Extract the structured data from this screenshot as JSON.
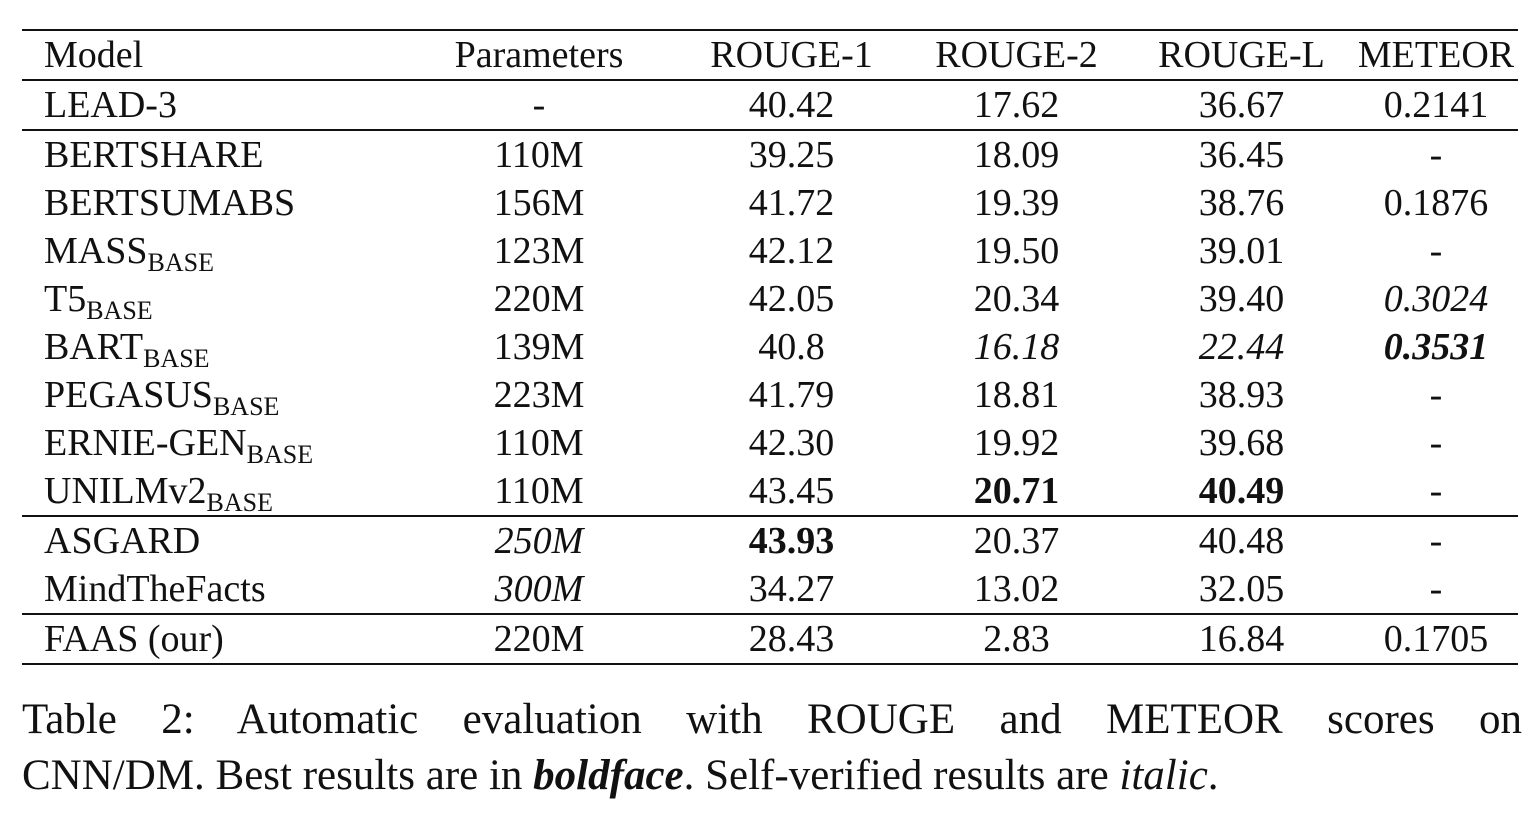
{
  "table": {
    "headers": [
      "Model",
      "Parameters",
      "ROUGE-1",
      "ROUGE-2",
      "ROUGE-L",
      "METEOR"
    ],
    "groups": [
      [
        {
          "model": "LEAD-3",
          "sub": "",
          "params": "-",
          "r1": "40.42",
          "r2": "17.62",
          "rl": "36.67",
          "meteor": "0.2141"
        }
      ],
      [
        {
          "model": "BERTSHARE",
          "sub": "",
          "params": "110M",
          "r1": "39.25",
          "r2": "18.09",
          "rl": "36.45",
          "meteor": "-"
        },
        {
          "model": "BERTSUMABS",
          "sub": "",
          "params": "156M",
          "r1": "41.72",
          "r2": "19.39",
          "rl": "38.76",
          "meteor": "0.1876"
        },
        {
          "model": "MASS",
          "sub": "BASE",
          "params": "123M",
          "r1": "42.12",
          "r2": "19.50",
          "rl": "39.01",
          "meteor": "-"
        },
        {
          "model": "T5",
          "sub": "BASE",
          "params": "220M",
          "r1": "42.05",
          "r2": "20.34",
          "rl": "39.40",
          "meteor": "0.3024"
        },
        {
          "model": "BART",
          "sub": "BASE",
          "params": "139M",
          "r1": "40.8",
          "r2": "16.18",
          "rl": "22.44",
          "meteor": "0.3531"
        },
        {
          "model": "PEGASUS",
          "sub": "BASE",
          "params": "223M",
          "r1": "41.79",
          "r2": "18.81",
          "rl": "38.93",
          "meteor": "-"
        },
        {
          "model": "ERNIE-GEN",
          "sub": "BASE",
          "params": "110M",
          "r1": "42.30",
          "r2": "19.92",
          "rl": "39.68",
          "meteor": "-"
        },
        {
          "model": "UNILMv2",
          "sub": "BASE",
          "params": "110M",
          "r1": "43.45",
          "r2": "20.71",
          "rl": "40.49",
          "meteor": "-"
        }
      ],
      [
        {
          "model": "ASGARD",
          "sub": "",
          "params": "250M",
          "r1": "43.93",
          "r2": "20.37",
          "rl": "40.48",
          "meteor": "-"
        },
        {
          "model": "MindTheFacts",
          "sub": "",
          "params": "300M",
          "r1": "34.27",
          "r2": "13.02",
          "rl": "32.05",
          "meteor": "-"
        }
      ],
      [
        {
          "model": "FAAS (our)",
          "sub": "",
          "params": "220M",
          "r1": "28.43",
          "r2": "2.83",
          "rl": "16.84",
          "meteor": "0.1705"
        }
      ]
    ]
  },
  "caption": {
    "line1": "Table 2:  Automatic evaluation with ROUGE and METEOR scores on",
    "line2_a": "CNN/DM. Best results are in ",
    "line2_bold": "boldface",
    "line2_b": ". Self-verified results are ",
    "line2_italic": "italic",
    "line2_c": "."
  }
}
